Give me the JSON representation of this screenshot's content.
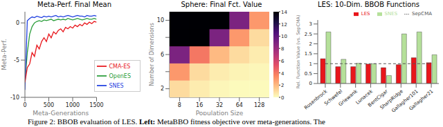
{
  "caption": [
    "Figure 2: BBOB evaluation of LES.",
    "Left:",
    "MetaBBO fitness objective over meta-generations. The"
  ],
  "chart_data": [
    {
      "type": "line",
      "title": "Meta-Perf. Final Mean",
      "x_label": "Meta-Generations",
      "y_label": "Meta-Perf.",
      "x": [
        0,
        50,
        100,
        150,
        200,
        250,
        300,
        350,
        400,
        450,
        500,
        550,
        600,
        650,
        700,
        750,
        800,
        850,
        900,
        950,
        1000,
        1050,
        1100,
        1150,
        1200,
        1250,
        1300,
        1350,
        1400,
        1450,
        1500
      ],
      "series": [
        {
          "name": "OpenES",
          "color": "#2a9d3a",
          "values": [
            -8,
            -4,
            -1.5,
            -0.5,
            0,
            0.2,
            0.3,
            0.2,
            0.4,
            0.3,
            0.4,
            0.5,
            0.3,
            0.4,
            0.5,
            0.4,
            0.5,
            0.4,
            0.6,
            0.5,
            0.4,
            0.5,
            0.6,
            0.5,
            0.4,
            0.5,
            0.6,
            0.5,
            0.5,
            0.6,
            0.5
          ]
        },
        {
          "name": "SNES",
          "color": "#1f3fe0",
          "values": [
            -9,
            0.3,
            0.6,
            0.8,
            0.7,
            0.9,
            0.8,
            0.7,
            0.9,
            0.8,
            0.9,
            0.8,
            0.9,
            1.0,
            0.8,
            0.9,
            0.8,
            0.9,
            1.0,
            0.9,
            0.8,
            0.9,
            1.0,
            0.9,
            0.9,
            0.8,
            1.0,
            0.9,
            0.9,
            1.0,
            0.9
          ]
        },
        {
          "name": "CMA-ES",
          "color": "#e8161b",
          "values": [
            -8,
            -6,
            -5.5,
            -4,
            -4.5,
            -3,
            -3.5,
            -2.5,
            -2,
            -2.5,
            -1.5,
            -2,
            -1.2,
            -1.5,
            -1,
            -0.8,
            -1.2,
            -0.6,
            -0.8,
            -0.5,
            -0.7,
            -0.3,
            -0.5,
            -0.2,
            -0.4,
            0,
            -0.2,
            0.1,
            -0.1,
            0.2,
            0.1
          ]
        }
      ],
      "xlim": [
        0,
        1500
      ],
      "xticks": [
        0,
        500,
        1000,
        1500
      ],
      "ylim": [
        -10,
        1.5
      ],
      "yticks": [
        -10,
        -5,
        0
      ],
      "legend": "lower right"
    },
    {
      "type": "heatmap",
      "title": "Sphere: Final Fct. Value",
      "x_label": "Population Size",
      "y_label": "Number of Dimensions",
      "categories": [
        "8",
        "16",
        "32",
        "64",
        "128"
      ],
      "y_categories": [
        "2",
        null,
        "6",
        null,
        "10"
      ],
      "cells": [
        [
          1,
          0.5,
          0.2,
          0.1,
          0.1
        ],
        [
          3,
          1,
          0.5,
          0.3,
          0.2
        ],
        [
          9,
          4,
          2,
          1,
          0.5
        ],
        [
          14,
          14,
          9,
          3,
          1
        ],
        [
          14,
          14,
          14,
          9,
          3
        ]
      ],
      "colorbar_range": [
        0,
        14
      ],
      "colorbar_ticks": [
        0,
        2,
        4,
        6,
        8,
        10,
        12,
        14
      ]
    },
    {
      "type": "bar",
      "title": "LES: 10-Dim. BBOB Functions",
      "y_label": "Rel. Function Value (vs. SepCMA)",
      "categories": [
        "Rosenbrock",
        "Schwefel",
        "Griewank",
        "Lunacek",
        "BentCigar",
        "SharpRidge",
        "Gallagher101",
        "Gallagher21"
      ],
      "series": [
        {
          "name": "LES",
          "color": "#e8161b",
          "values": [
            1.25,
            0.85,
            0.85,
            0.98,
            0.8,
            0.95,
            1.3,
            1.05
          ]
        },
        {
          "name": "SNES",
          "color": "#b5e09a",
          "values": [
            2.6,
            1.22,
            1.02,
            1.0,
            0.4,
            2.5,
            2.6,
            1.45
          ]
        },
        {
          "name": "SepCMA",
          "color": "#555555",
          "type": "line",
          "line_style": "dashed",
          "values": [
            1,
            1,
            1,
            1,
            1,
            1,
            1,
            1
          ]
        }
      ],
      "ylim": [
        0,
        3.2
      ],
      "yticks": [
        0,
        0.5,
        1,
        1.5,
        2,
        2.5,
        3
      ],
      "legend": "top"
    }
  ]
}
